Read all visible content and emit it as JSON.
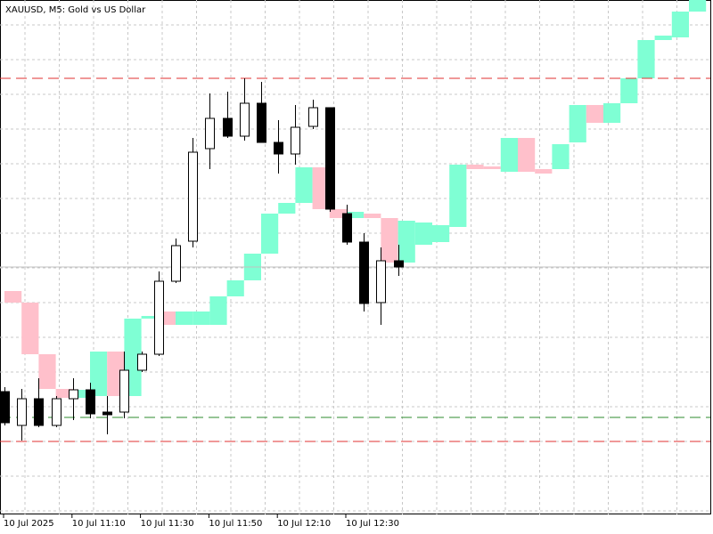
{
  "chart_data": {
    "type": "candlestick",
    "title": "XAUUSD, M5:  Gold vs US Dollar",
    "categories": [
      "10 Jul 2025",
      null,
      null,
      null,
      "10 Jul 11:10",
      null,
      null,
      null,
      "10 Jul 11:30",
      null,
      null,
      null,
      "10 Jul 11:50",
      null,
      null,
      null,
      "10 Jul 12:10",
      null,
      null,
      null,
      "10 Jul 12:30",
      null,
      null,
      null
    ],
    "open": [
      138,
      100,
      130,
      100,
      130,
      140,
      115,
      115,
      162,
      180,
      262,
      307,
      411,
      445,
      425,
      462,
      418,
      405,
      436,
      457,
      338,
      306,
      238,
      285
    ],
    "high": [
      143,
      141,
      153,
      133,
      153,
      148,
      133,
      183,
      183,
      273,
      310,
      423,
      473,
      475,
      490,
      486,
      443,
      460,
      466,
      457,
      348,
      316,
      300,
      303
    ],
    "low": [
      100,
      83,
      98,
      98,
      106,
      108,
      90,
      108,
      160,
      178,
      260,
      300,
      388,
      423,
      420,
      418,
      383,
      393,
      433,
      340,
      303,
      228,
      213,
      268
    ],
    "close": [
      103,
      130,
      100,
      130,
      140,
      113,
      112,
      162,
      180,
      262,
      302,
      407,
      445,
      425,
      462,
      418,
      405,
      435,
      457,
      343,
      306,
      237,
      285,
      278
    ],
    "up_color": "#ffffff",
    "down_color": "#000000",
    "bricks": {
      "open": [
        251,
        238,
        180,
        141,
        131,
        133,
        183,
        133,
        220,
        228,
        213,
        213,
        213,
        245,
        263,
        293,
        338,
        350,
        390,
        343,
        333,
        338,
        333,
        283,
        303,
        306,
        323,
        393,
        391,
        385,
        423,
        388,
        388,
        418,
        460,
        440,
        462,
        490,
        533,
        536,
        565
      ],
      "close": [
        238,
        180,
        141,
        131,
        140,
        183,
        133,
        220,
        223,
        213,
        228,
        228,
        245,
        263,
        293,
        338,
        350,
        390,
        343,
        333,
        340,
        333,
        283,
        330,
        328,
        325,
        393,
        388,
        388,
        423,
        385,
        383,
        416,
        460,
        440,
        462,
        490,
        533,
        538,
        565,
        578
      ],
      "up_color": "#7fffd4",
      "down_color": "#ffc0cb"
    },
    "levels": [
      {
        "value": 490,
        "color": "#e03030"
      },
      {
        "value": 278,
        "color": "#c0c0c0"
      },
      {
        "value": 109,
        "color": "#2e8b2e"
      },
      {
        "value": 82,
        "color": "#e03030"
      }
    ],
    "grid": true
  }
}
